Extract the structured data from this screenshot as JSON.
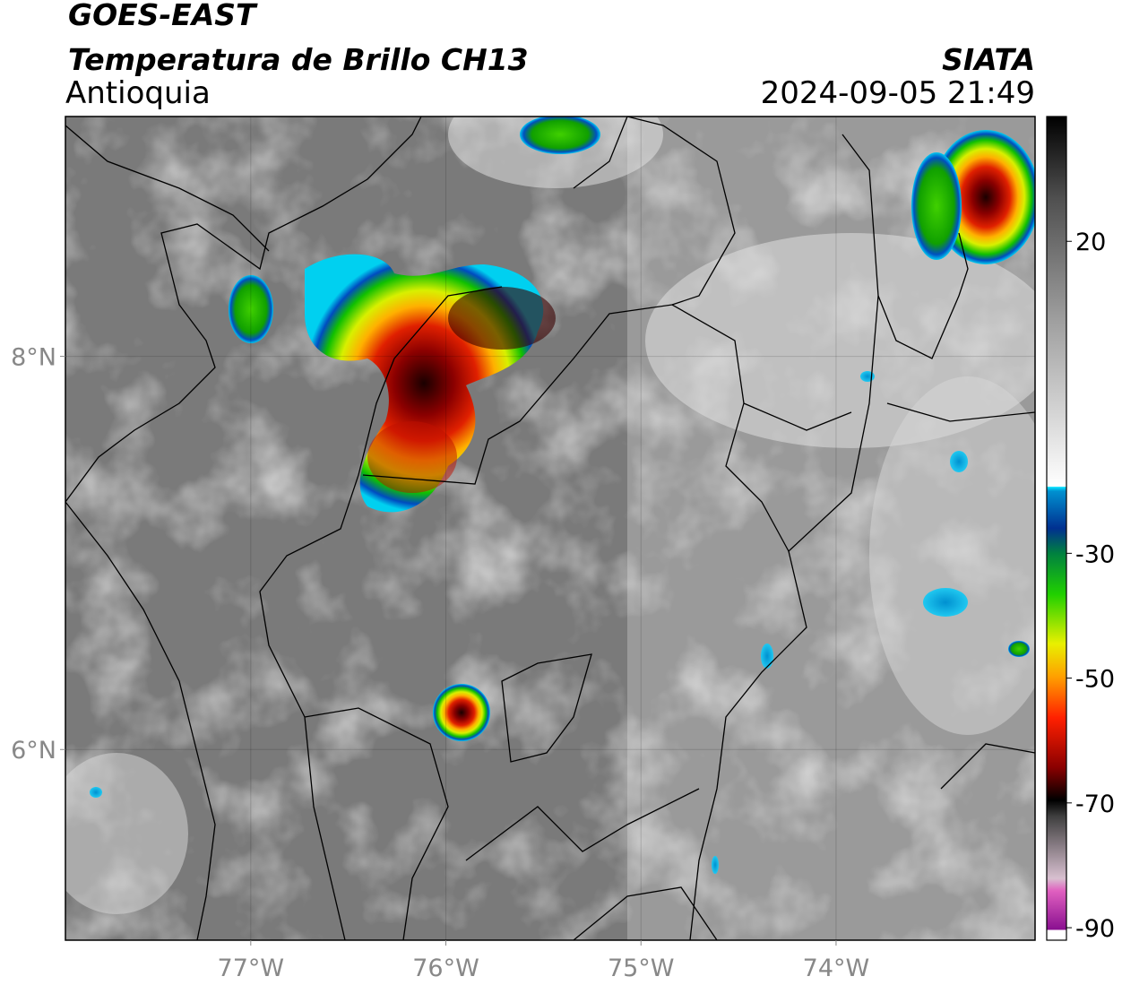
{
  "header": {
    "title": "GOES-EAST",
    "subtitle": "Temperatura de Brillo CH13",
    "region": "Antioquia",
    "source": "SIATA",
    "datetime": "2024-09-05 21:49"
  },
  "map": {
    "xlim": [
      -77.95,
      -72.98
    ],
    "ylim": [
      5.03,
      9.22
    ],
    "xticks": [
      {
        "value": -77,
        "label": "77°W"
      },
      {
        "value": -76,
        "label": "76°W"
      },
      {
        "value": -75,
        "label": "75°W"
      },
      {
        "value": -74,
        "label": "74°W"
      }
    ],
    "yticks": [
      {
        "value": 8,
        "label": "8°N"
      },
      {
        "value": 6,
        "label": "6°N"
      }
    ]
  },
  "colorbar": {
    "lim": [
      -92,
      40
    ],
    "ticks": [
      20,
      -30,
      -50,
      -70,
      -90
    ]
  }
}
